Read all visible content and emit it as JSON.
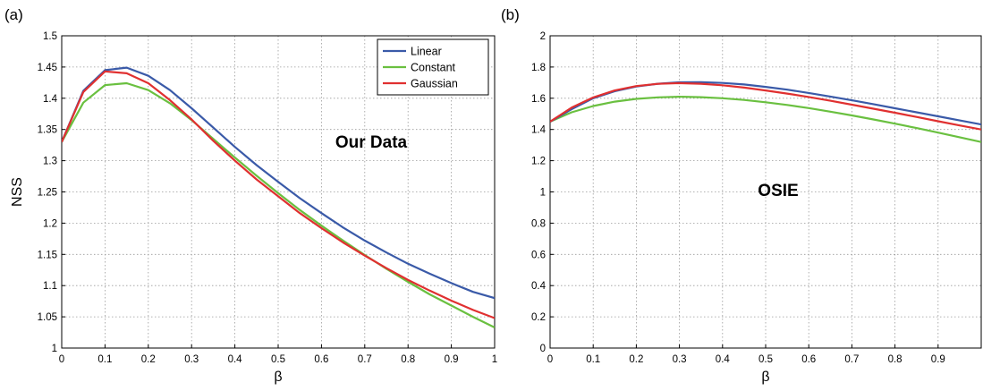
{
  "chart_data": [
    {
      "panel_label": "(a)",
      "type": "line",
      "annotation": "Our Data",
      "xlabel": "β",
      "ylabel": "NSS",
      "xlim": [
        0,
        1
      ],
      "ylim": [
        1,
        1.5
      ],
      "xticks": [
        0,
        0.1,
        0.2,
        0.3,
        0.4,
        0.5,
        0.6,
        0.7,
        0.8,
        0.9,
        1
      ],
      "yticks": [
        1,
        1.05,
        1.1,
        1.15,
        1.2,
        1.25,
        1.3,
        1.35,
        1.4,
        1.45,
        1.5
      ],
      "grid": true,
      "legend": "top-right",
      "x": [
        0,
        0.05,
        0.1,
        0.15,
        0.2,
        0.25,
        0.3,
        0.35,
        0.4,
        0.45,
        0.5,
        0.55,
        0.6,
        0.65,
        0.7,
        0.75,
        0.8,
        0.85,
        0.9,
        0.95,
        1
      ],
      "series": [
        {
          "name": "Linear",
          "color": "#3a5aa8",
          "values": [
            1.33,
            1.412,
            1.445,
            1.449,
            1.436,
            1.413,
            1.384,
            1.353,
            1.322,
            1.293,
            1.266,
            1.24,
            1.216,
            1.193,
            1.172,
            1.153,
            1.135,
            1.119,
            1.104,
            1.09,
            1.08
          ]
        },
        {
          "name": "Constant",
          "color": "#6ac040",
          "values": [
            1.33,
            1.393,
            1.421,
            1.424,
            1.413,
            1.392,
            1.365,
            1.335,
            1.305,
            1.276,
            1.248,
            1.221,
            1.196,
            1.172,
            1.149,
            1.127,
            1.106,
            1.086,
            1.068,
            1.05,
            1.033
          ]
        },
        {
          "name": "Gaussian",
          "color": "#e03030",
          "values": [
            1.33,
            1.41,
            1.443,
            1.44,
            1.424,
            1.397,
            1.366,
            1.332,
            1.3,
            1.27,
            1.243,
            1.216,
            1.192,
            1.169,
            1.148,
            1.128,
            1.109,
            1.092,
            1.076,
            1.061,
            1.048
          ]
        }
      ]
    },
    {
      "panel_label": "(b)",
      "type": "line",
      "annotation": "OSIE",
      "xlabel": "β",
      "ylabel": "",
      "xlim": [
        0,
        1
      ],
      "ylim": [
        0,
        2
      ],
      "xticks": [
        0,
        0.1,
        0.2,
        0.3,
        0.4,
        0.5,
        0.6,
        0.7,
        0.8,
        0.9
      ],
      "yticks": [
        0,
        0.2,
        0.4,
        0.6,
        0.8,
        1,
        1.2,
        1.4,
        1.6,
        1.8,
        2
      ],
      "grid": true,
      "x": [
        0,
        0.05,
        0.1,
        0.15,
        0.2,
        0.25,
        0.3,
        0.35,
        0.4,
        0.45,
        0.5,
        0.55,
        0.6,
        0.65,
        0.7,
        0.75,
        0.8,
        0.85,
        0.9,
        0.95,
        1
      ],
      "series": [
        {
          "color": "#3a5aa8",
          "values": [
            1.45,
            1.53,
            1.6,
            1.645,
            1.675,
            1.693,
            1.702,
            1.703,
            1.698,
            1.688,
            1.673,
            1.655,
            1.634,
            1.611,
            1.587,
            1.562,
            1.536,
            1.51,
            1.484,
            1.458,
            1.432
          ]
        },
        {
          "color": "#6ac040",
          "values": [
            1.45,
            1.51,
            1.55,
            1.578,
            1.596,
            1.606,
            1.61,
            1.607,
            1.6,
            1.589,
            1.574,
            1.557,
            1.537,
            1.514,
            1.49,
            1.464,
            1.437,
            1.409,
            1.38,
            1.35,
            1.32
          ]
        },
        {
          "color": "#e03030",
          "values": [
            1.45,
            1.54,
            1.605,
            1.65,
            1.678,
            1.692,
            1.697,
            1.693,
            1.683,
            1.668,
            1.65,
            1.63,
            1.608,
            1.584,
            1.559,
            1.533,
            1.507,
            1.48,
            1.453,
            1.426,
            1.4
          ]
        }
      ]
    }
  ]
}
